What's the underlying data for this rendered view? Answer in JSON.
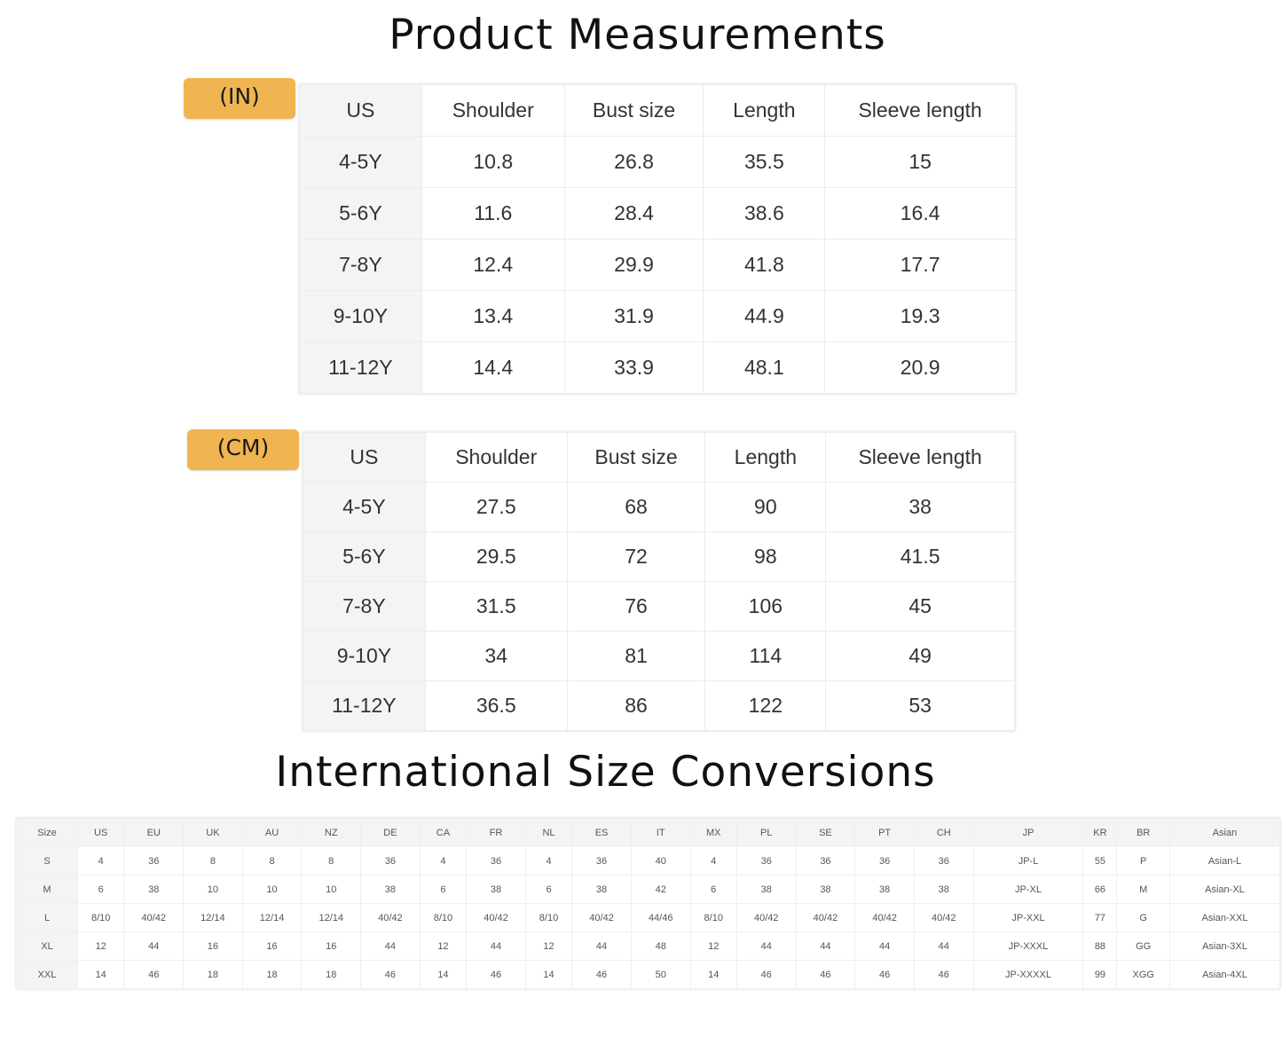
{
  "title": "Product Measurements",
  "inches": {
    "label": "(IN)",
    "headers": [
      "US",
      "Shoulder",
      "Bust size",
      "Length",
      "Sleeve length"
    ],
    "rows": [
      [
        "4-5Y",
        "10.8",
        "26.8",
        "35.5",
        "15"
      ],
      [
        "5-6Y",
        "11.6",
        "28.4",
        "38.6",
        "16.4"
      ],
      [
        "7-8Y",
        "12.4",
        "29.9",
        "41.8",
        "17.7"
      ],
      [
        "9-10Y",
        "13.4",
        "31.9",
        "44.9",
        "19.3"
      ],
      [
        "11-12Y",
        "14.4",
        "33.9",
        "48.1",
        "20.9"
      ]
    ]
  },
  "centimeters": {
    "label": "(CM)",
    "headers": [
      "US",
      "Shoulder",
      "Bust size",
      "Length",
      "Sleeve length"
    ],
    "rows": [
      [
        "4-5Y",
        "27.5",
        "68",
        "90",
        "38"
      ],
      [
        "5-6Y",
        "29.5",
        "72",
        "98",
        "41.5"
      ],
      [
        "7-8Y",
        "31.5",
        "76",
        "106",
        "45"
      ],
      [
        "9-10Y",
        "34",
        "81",
        "114",
        "49"
      ],
      [
        "11-12Y",
        "36.5",
        "86",
        "122",
        "53"
      ]
    ]
  },
  "conversion_title": "International Size Conversions",
  "conversions": {
    "headers": [
      "Size",
      "US",
      "EU",
      "UK",
      "AU",
      "NZ",
      "DE",
      "CA",
      "FR",
      "NL",
      "ES",
      "IT",
      "MX",
      "PL",
      "SE",
      "PT",
      "CH",
      "JP",
      "KR",
      "BR",
      "Asian"
    ],
    "rows": [
      [
        "S",
        "4",
        "36",
        "8",
        "8",
        "8",
        "36",
        "4",
        "36",
        "4",
        "36",
        "40",
        "4",
        "36",
        "36",
        "36",
        "36",
        "JP-L",
        "55",
        "P",
        "Asian-L"
      ],
      [
        "M",
        "6",
        "38",
        "10",
        "10",
        "10",
        "38",
        "6",
        "38",
        "6",
        "38",
        "42",
        "6",
        "38",
        "38",
        "38",
        "38",
        "JP-XL",
        "66",
        "M",
        "Asian-XL"
      ],
      [
        "L",
        "8/10",
        "40/42",
        "12/14",
        "12/14",
        "12/14",
        "40/42",
        "8/10",
        "40/42",
        "8/10",
        "40/42",
        "44/46",
        "8/10",
        "40/42",
        "40/42",
        "40/42",
        "40/42",
        "JP-XXL",
        "77",
        "G",
        "Asian-XXL"
      ],
      [
        "XL",
        "12",
        "44",
        "16",
        "16",
        "16",
        "44",
        "12",
        "44",
        "12",
        "44",
        "48",
        "12",
        "44",
        "44",
        "44",
        "44",
        "JP-XXXL",
        "88",
        "GG",
        "Asian-3XL"
      ],
      [
        "XXL",
        "14",
        "46",
        "18",
        "18",
        "18",
        "46",
        "14",
        "46",
        "14",
        "46",
        "50",
        "14",
        "46",
        "46",
        "46",
        "46",
        "JP-XXXXL",
        "99",
        "XGG",
        "Asian-4XL"
      ]
    ]
  },
  "colors": {
    "tag": "#f0b550",
    "header_bg": "#f4f4f4"
  }
}
